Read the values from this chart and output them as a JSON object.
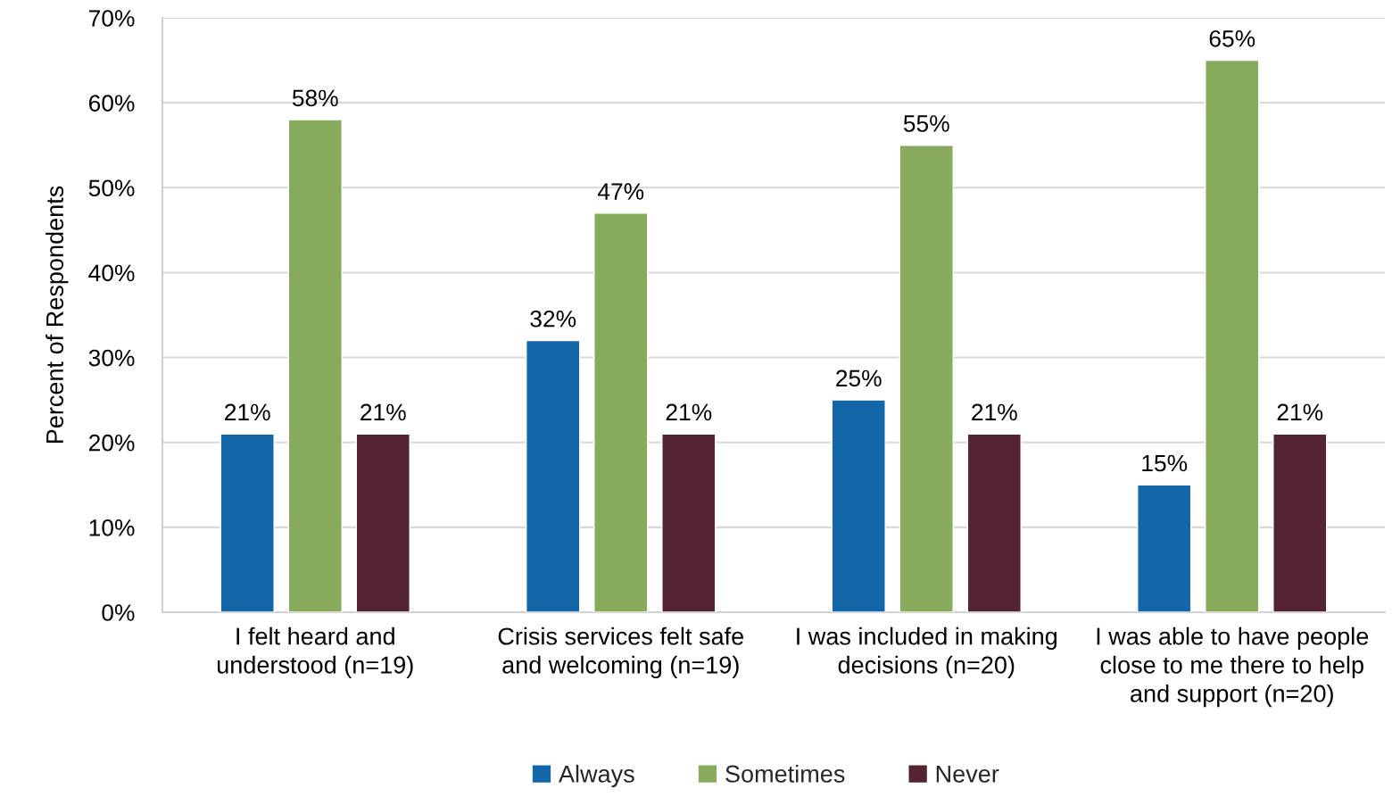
{
  "chart_data": {
    "type": "bar",
    "ylabel": "Percent of Respondents",
    "categories": [
      "I felt heard and\nunderstood (n=19)",
      "Crisis services felt safe\nand welcoming (n=19)",
      "I was included in making\ndecisions (n=20)",
      "I was able to have people\nclose to me there to help\nand support (n=20)"
    ],
    "series": [
      {
        "name": "Always",
        "color": "#1366a8",
        "values": [
          21,
          32,
          25,
          15
        ],
        "value_labels": [
          "21%",
          "32%",
          "25%",
          "15%"
        ]
      },
      {
        "name": "Sometimes",
        "color": "#87aa5c",
        "values": [
          58,
          47,
          55,
          65
        ],
        "value_labels": [
          "58%",
          "47%",
          "55%",
          "65%"
        ]
      },
      {
        "name": "Never",
        "color": "#552433",
        "values": [
          21,
          21,
          21,
          21
        ],
        "value_labels": [
          "21%",
          "21%",
          "21%",
          "21%"
        ]
      }
    ],
    "ylim": [
      0,
      70
    ],
    "yticks": [
      {
        "value": 0,
        "label": "0%"
      },
      {
        "value": 10,
        "label": "10%"
      },
      {
        "value": 20,
        "label": "20%"
      },
      {
        "value": 30,
        "label": "30%"
      },
      {
        "value": 40,
        "label": "40%"
      },
      {
        "value": 50,
        "label": "50%"
      },
      {
        "value": 60,
        "label": "60%"
      },
      {
        "value": 70,
        "label": "70%"
      }
    ],
    "grid": "y",
    "legend": "bottom"
  }
}
